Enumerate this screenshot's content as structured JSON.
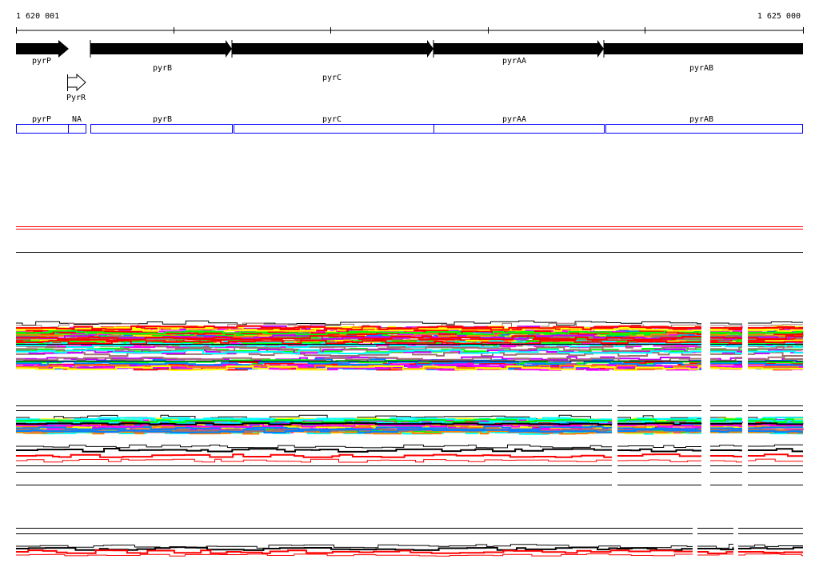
{
  "ruler": {
    "start_label": "1 620 001",
    "end_label": "1 625 000"
  },
  "genes": [
    {
      "name": "pyrP",
      "strand": "+",
      "style": "filled"
    },
    {
      "name": "pyrB",
      "strand": "+",
      "style": "filled"
    },
    {
      "name": "pyrC",
      "strand": "+",
      "style": "filled"
    },
    {
      "name": "pyrAA",
      "strand": "+",
      "style": "filled"
    },
    {
      "name": "pyrAB",
      "strand": "+",
      "style": "filled"
    },
    {
      "name": "PyrR",
      "strand": "+",
      "style": "open"
    }
  ],
  "annotation_boxes": [
    "pyrP",
    "NA",
    "pyrB",
    "pyrC",
    "pyrAA",
    "pyrAB"
  ],
  "colors": {
    "annotation_box": "#0000ff",
    "highlight_line": "#ff0000",
    "gene": "#000000"
  },
  "profile_palette": [
    "#ff00ff",
    "#00ff00",
    "#00ffff",
    "#ff0000",
    "#0080ff",
    "#ff8000",
    "#ffff00",
    "#a07070",
    "#c000ff",
    "#000000",
    "#808080"
  ]
}
